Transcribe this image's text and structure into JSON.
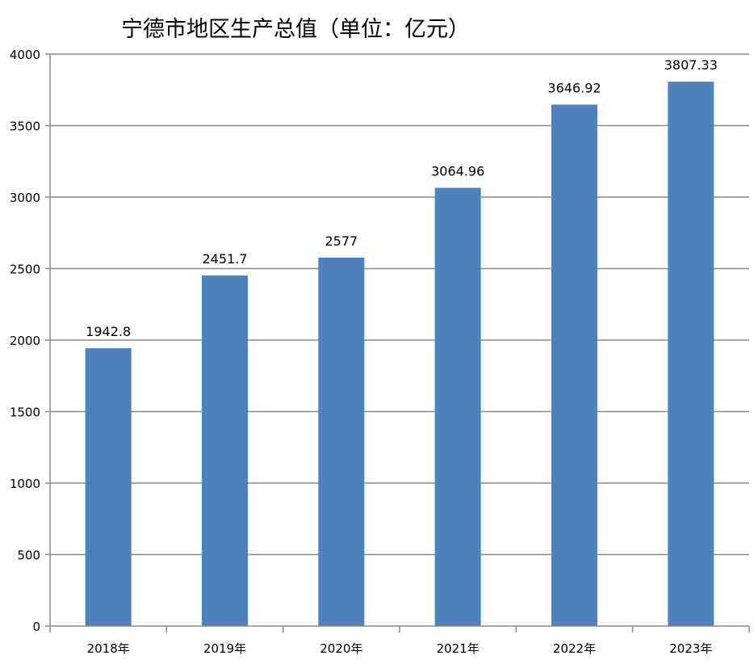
{
  "chart_data": {
    "type": "bar",
    "title": "宁德市地区生产总值（单位：亿元）",
    "categories": [
      "2018年",
      "2019年",
      "2020年",
      "2021年",
      "2022年",
      "2023年"
    ],
    "values": [
      1942.8,
      2451.7,
      2577,
      3064.96,
      3646.92,
      3807.33
    ],
    "data_labels": [
      "1942.8",
      "2451.7",
      "2577",
      "3064.96",
      "3646.92",
      "3807.33"
    ],
    "ylim": [
      0,
      4000
    ],
    "yticks": [
      0,
      500,
      1000,
      1500,
      2000,
      2500,
      3000,
      3500,
      4000
    ],
    "grid": true,
    "bar_color": "#4f81bd",
    "grid_color": "#888888",
    "axis_color": "#888888"
  }
}
